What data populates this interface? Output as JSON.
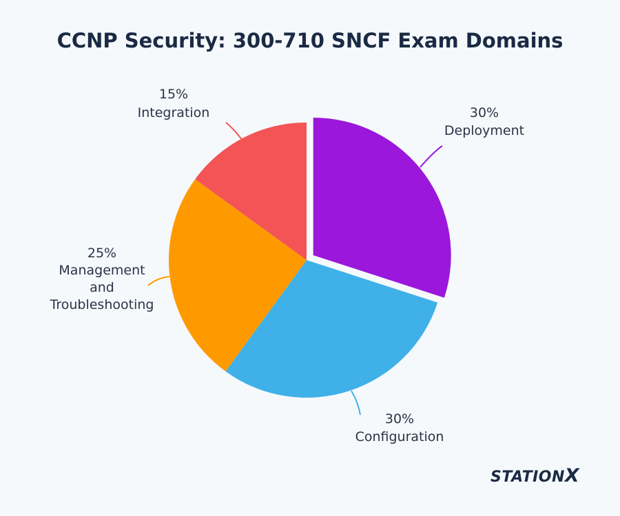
{
  "chart_data": {
    "type": "pie",
    "title": "CCNP Security: 300-710 SNCF Exam Domains",
    "slices": [
      {
        "label": "Deployment",
        "percent_label": "30%",
        "value": 30,
        "color": "#9b17db",
        "exploded": true
      },
      {
        "label": "Configuration",
        "percent_label": "30%",
        "value": 30,
        "color": "#3fb1e8",
        "exploded": false
      },
      {
        "label": "Management and Troubleshooting",
        "percent_label": "25%",
        "value": 25,
        "color": "#fe9a00",
        "exploded": false
      },
      {
        "label": "Integration",
        "percent_label": "15%",
        "value": 15,
        "color": "#f45455",
        "exploded": false
      }
    ]
  },
  "logo": {
    "text": "STATION",
    "x": "X"
  }
}
